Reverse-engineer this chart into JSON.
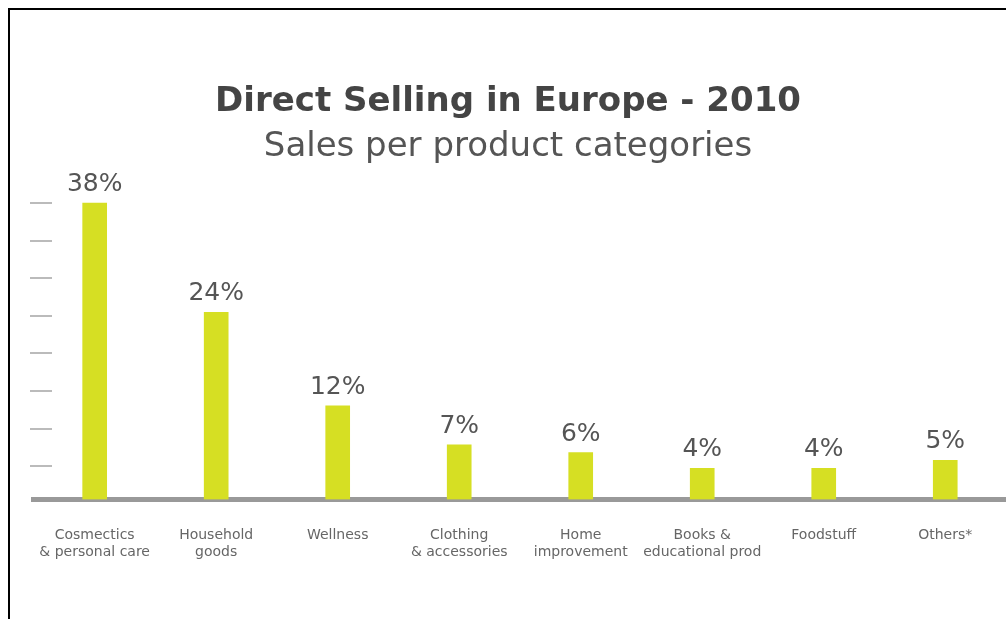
{
  "chart_data": {
    "type": "bar",
    "title": "Direct Selling in Europe - 2010",
    "subtitle": "Sales per product categories",
    "categories": [
      "Cosmectics\n& personal care",
      "Household\ngoods",
      "Wellness",
      "Clothing\n& accessories",
      "Home\nimprovement",
      "Books &\neducational prod",
      "Foodstuff",
      "Others*"
    ],
    "values": [
      38,
      24,
      12,
      7,
      6,
      4,
      4,
      5
    ],
    "color": "#d6df23",
    "tick_labels": "x",
    "grid": false,
    "legend": false,
    "value_labels": [
      "38%",
      "24%",
      "12%",
      "7%",
      "6%",
      "4%",
      "4%",
      "5%"
    ]
  }
}
